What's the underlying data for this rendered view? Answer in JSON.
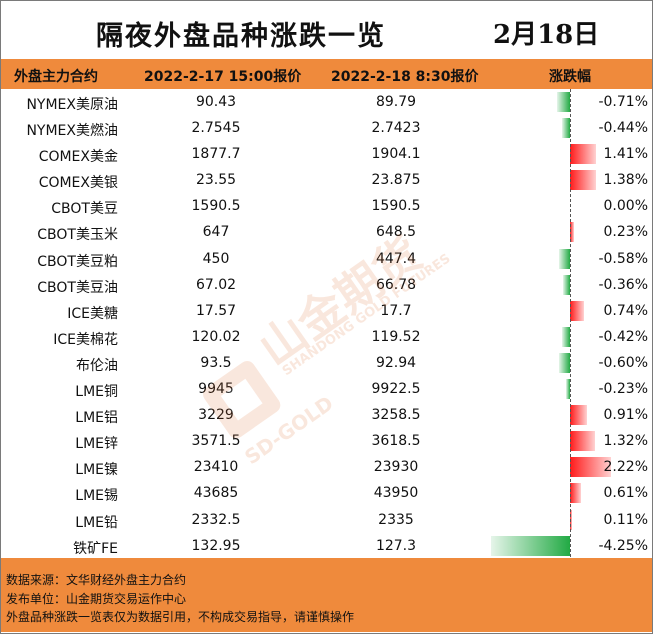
{
  "title": "隔夜外盘品种涨跌一览",
  "date": "2月18日",
  "header": {
    "col_name": "外盘主力合约",
    "col_old": "2022-2-17 15:00报价",
    "col_new": "2022-2-18 8:30报价",
    "col_change": "涨跌幅"
  },
  "rows": [
    {
      "name": "NYMEX美原油",
      "old": "90.43",
      "new": "89.79",
      "pct": "-0.71%",
      "value": -0.71
    },
    {
      "name": "NYMEX美燃油",
      "old": "2.7545",
      "new": "2.7423",
      "pct": "-0.44%",
      "value": -0.44
    },
    {
      "name": "COMEX美金",
      "old": "1877.7",
      "new": "1904.1",
      "pct": "1.41%",
      "value": 1.41
    },
    {
      "name": "COMEX美银",
      "old": "23.55",
      "new": "23.875",
      "pct": "1.38%",
      "value": 1.38
    },
    {
      "name": "CBOT美豆",
      "old": "1590.5",
      "new": "1590.5",
      "pct": "0.00%",
      "value": 0.0
    },
    {
      "name": "CBOT美玉米",
      "old": "647",
      "new": "648.5",
      "pct": "0.23%",
      "value": 0.23
    },
    {
      "name": "CBOT美豆粕",
      "old": "450",
      "new": "447.4",
      "pct": "-0.58%",
      "value": -0.58
    },
    {
      "name": "CBOT美豆油",
      "old": "67.02",
      "new": "66.78",
      "pct": "-0.36%",
      "value": -0.36
    },
    {
      "name": "ICE美糖",
      "old": "17.57",
      "new": "17.7",
      "pct": "0.74%",
      "value": 0.74
    },
    {
      "name": "ICE美棉花",
      "old": "120.02",
      "new": "119.52",
      "pct": "-0.42%",
      "value": -0.42
    },
    {
      "name": "布伦油",
      "old": "93.5",
      "new": "92.94",
      "pct": "-0.60%",
      "value": -0.6
    },
    {
      "name": "LME铜",
      "old": "9945",
      "new": "9922.5",
      "pct": "-0.23%",
      "value": -0.23
    },
    {
      "name": "LME铝",
      "old": "3229",
      "new": "3258.5",
      "pct": "0.91%",
      "value": 0.91
    },
    {
      "name": "LME锌",
      "old": "3571.5",
      "new": "3618.5",
      "pct": "1.32%",
      "value": 1.32
    },
    {
      "name": "LME镍",
      "old": "23410",
      "new": "23930",
      "pct": "2.22%",
      "value": 2.22
    },
    {
      "name": "LME锡",
      "old": "43685",
      "new": "43950",
      "pct": "0.61%",
      "value": 0.61
    },
    {
      "name": "LME铅",
      "old": "2332.5",
      "new": "2335",
      "pct": "0.11%",
      "value": 0.11
    },
    {
      "name": "铁矿FE",
      "old": "132.95",
      "new": "127.3",
      "pct": "-4.25%",
      "value": -4.25
    }
  ],
  "footer": {
    "source": "数据来源：文华财经外盘主力合约",
    "publisher": "发布单位：山金期货交易运作中心",
    "disclaimer": "外盘品种涨跌一览表仅为数据引用，不构成交易指导，请谨慎操作"
  },
  "watermark": {
    "brand_cn": "山金期货",
    "brand_en": "SHANDONG GOLD FUTURES",
    "logo_text": "SD-GOLD"
  },
  "colors": {
    "header_bg": "#ef8a3c",
    "positive": "#ff1a1a",
    "negative": "#22aa44"
  }
}
